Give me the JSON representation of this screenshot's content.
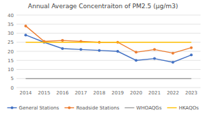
{
  "chart_data": {
    "type": "line",
    "title": "Annual Average Concentraiton of PM2.5 (μg/m3)",
    "categories": [
      "2014",
      "2015",
      "2016",
      "2017",
      "2018",
      "2019",
      "2020",
      "2021",
      "2022",
      "2023"
    ],
    "series": [
      {
        "name": "General Stations",
        "color": "#4472C4",
        "marker": "circle",
        "line_style": "solid",
        "values": [
          29,
          25,
          21.5,
          21,
          20.5,
          20,
          15,
          16,
          14,
          18
        ]
      },
      {
        "name": "Roadside Stations",
        "color": "#ED7D31",
        "marker": "circle",
        "line_style": "solid",
        "values": [
          34,
          25.5,
          26,
          25.5,
          25,
          25,
          19.5,
          21,
          19,
          22
        ]
      },
      {
        "name": "WHOAQGs",
        "color": "#A0A0A0",
        "line_style": "solid",
        "values": [
          5,
          5,
          5,
          5,
          5,
          5,
          5,
          5,
          5,
          5
        ]
      },
      {
        "name": "HKAQOs",
        "color": "#FFC000",
        "line_style": "solid",
        "values": [
          25,
          25,
          25,
          25,
          25,
          25,
          25,
          25,
          25,
          25
        ]
      }
    ],
    "ylim": [
      0,
      40
    ],
    "yticks": [
      0,
      5,
      10,
      15,
      20,
      25,
      30,
      35,
      40
    ],
    "grid": true,
    "legend": "bottom"
  }
}
